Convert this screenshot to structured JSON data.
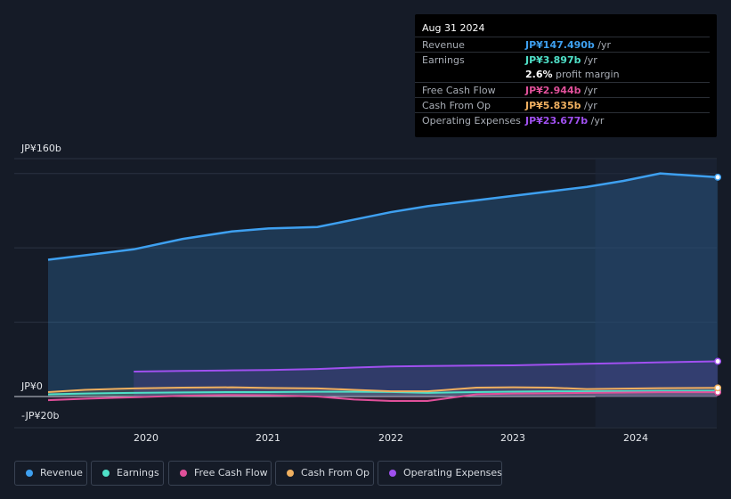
{
  "tooltip": {
    "date": "Aug 31 2024",
    "rows": [
      {
        "label": "Revenue",
        "value": "JP¥147.490b",
        "unit": "/yr",
        "color": "#3ea0f0"
      },
      {
        "label": "Earnings",
        "value": "JP¥3.897b",
        "unit": "/yr",
        "color": "#4fe0c8"
      },
      {
        "label": "",
        "value": "2.6%",
        "unit": "profit margin",
        "color": "#ffffff"
      },
      {
        "label": "Free Cash Flow",
        "value": "JP¥2.944b",
        "unit": "/yr",
        "color": "#e0509a"
      },
      {
        "label": "Cash From Op",
        "value": "JP¥5.835b",
        "unit": "/yr",
        "color": "#f0b060"
      },
      {
        "label": "Operating Expenses",
        "value": "JP¥23.677b",
        "unit": "/yr",
        "color": "#a050f0"
      }
    ]
  },
  "legend": [
    {
      "label": "Revenue",
      "color": "#3ea0f0"
    },
    {
      "label": "Earnings",
      "color": "#4fe0c8"
    },
    {
      "label": "Free Cash Flow",
      "color": "#e0509a"
    },
    {
      "label": "Cash From Op",
      "color": "#f0b060"
    },
    {
      "label": "Operating Expenses",
      "color": "#a050f0"
    }
  ],
  "chart_data": {
    "type": "area",
    "ylim": [
      -20,
      160
    ],
    "y_tick_labels": [
      "JP¥160b",
      "JP¥0",
      "-JP¥20b"
    ],
    "x_tick_labels": [
      "2020",
      "2021",
      "2022",
      "2023",
      "2024"
    ],
    "x": [
      2019.2,
      2019.5,
      2019.9,
      2020.3,
      2020.7,
      2021.0,
      2021.4,
      2021.7,
      2022.0,
      2022.3,
      2022.7,
      2023.0,
      2023.3,
      2023.6,
      2023.9,
      2024.2,
      2024.67
    ],
    "series": [
      {
        "name": "Revenue",
        "color": "#3ea0f0",
        "values": [
          92,
          95,
          99,
          106,
          111,
          113,
          114,
          119,
          124,
          128,
          132,
          135,
          138,
          141,
          145,
          150,
          147.49
        ]
      },
      {
        "name": "Earnings",
        "color": "#4fe0c8",
        "values": [
          1.5,
          2.0,
          2.5,
          2.8,
          3.0,
          3.0,
          3.2,
          3.2,
          3.1,
          2.5,
          3.0,
          3.3,
          3.5,
          3.5,
          3.6,
          3.8,
          3.897
        ]
      },
      {
        "name": "Free Cash Flow",
        "color": "#e0509a",
        "values": [
          -2.5,
          -1.5,
          -0.5,
          0.5,
          1.0,
          0.8,
          0.0,
          -2.0,
          -3.0,
          -3.0,
          1.5,
          2.0,
          2.2,
          2.5,
          2.7,
          2.9,
          2.944
        ]
      },
      {
        "name": "Cash From Op",
        "color": "#f0b060",
        "values": [
          3.0,
          4.5,
          5.5,
          6.0,
          6.2,
          5.8,
          5.5,
          4.5,
          3.5,
          3.5,
          6.0,
          6.2,
          6.0,
          5.0,
          5.3,
          5.6,
          5.835
        ]
      },
      {
        "name": "Operating Expenses",
        "color": "#a050f0",
        "start_x": 2019.9,
        "values": [
          null,
          null,
          16.8,
          17.2,
          17.6,
          17.8,
          18.5,
          19.5,
          20.2,
          20.5,
          20.8,
          21.0,
          21.5,
          22.0,
          22.5,
          23.0,
          23.677
        ]
      }
    ],
    "forecast_shading_from": 2023.67,
    "grid": true
  }
}
